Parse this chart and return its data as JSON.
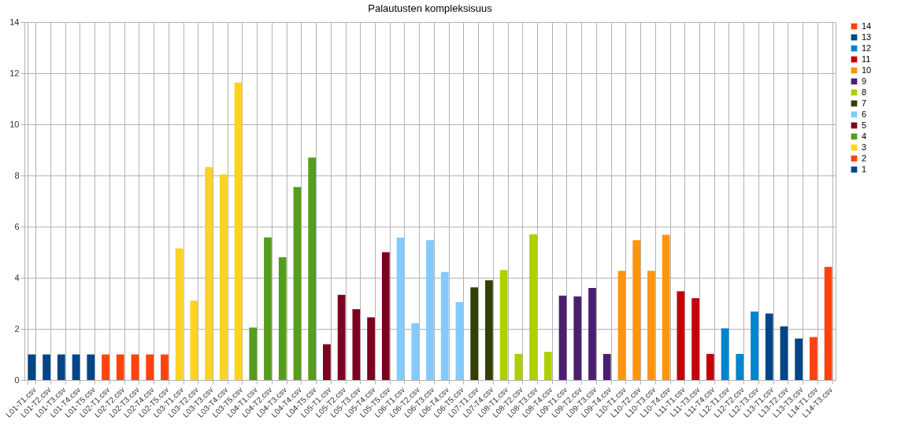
{
  "chart_data": {
    "type": "bar",
    "title": "Palautusten kompleksisuus",
    "categories": [
      "L01-T1.csv",
      "L01-T2.csv",
      "L01-T3.csv",
      "L01-T4.csv",
      "L01-T5.csv",
      "L02-T1.csv",
      "L02-T2.csv",
      "L02-T3.csv",
      "L02-T4.csv",
      "L02-T5.csv",
      "L03-T1.csv",
      "L03-T2.csv",
      "L03-T3.csv",
      "L03-T4.csv",
      "L03-T5.csv",
      "L04-T1.csv",
      "L04-T2.csv",
      "L04-T3.csv",
      "L04-T4.csv",
      "L04-T5.csv",
      "L05-T1.csv",
      "L05-T2.csv",
      "L05-T3.csv",
      "L05-T4.csv",
      "L05-T5.csv",
      "L06-T1.csv",
      "L06-T2.csv",
      "L06-T3.csv",
      "L06-T4.csv",
      "L06-T5.csv",
      "L07-T1.csv",
      "L07-T4.csv",
      "L08-T1.csv",
      "L08-T2.csv",
      "L08-T3.csv",
      "L08-T4.csv",
      "L09-T1.csv",
      "L09-T2.csv",
      "L09-T3.csv",
      "L09-T4.csv",
      "L10-T1.csv",
      "L10-T2.csv",
      "L10-T3.csv",
      "L10-T4.csv",
      "L11-T1.csv",
      "L11-T3.csv",
      "L11-T4.csv",
      "L12-T1.csv",
      "L12-T2.csv",
      "L12-T3.csv",
      "L13-T1.csv",
      "L13-T2.csv",
      "L13-T3.csv",
      "L14-T1.csv",
      "L14-T3.csv"
    ],
    "series": [
      {
        "name": "1",
        "color": "#004586",
        "values": [
          1,
          1,
          1,
          1,
          1,
          null,
          null,
          null,
          null,
          null,
          null,
          null,
          null,
          null,
          null,
          null,
          null,
          null,
          null,
          null,
          null,
          null,
          null,
          null,
          null,
          null,
          null,
          null,
          null,
          null,
          null,
          null,
          null,
          null,
          null,
          null,
          null,
          null,
          null,
          null,
          null,
          null,
          null,
          null,
          null,
          null,
          null,
          null,
          null,
          null,
          null,
          null,
          null,
          null,
          null
        ]
      },
      {
        "name": "2",
        "color": "#ff420e",
        "values": [
          null,
          null,
          null,
          null,
          null,
          1,
          1,
          1,
          1,
          1,
          null,
          null,
          null,
          null,
          null,
          null,
          null,
          null,
          null,
          null,
          null,
          null,
          null,
          null,
          null,
          null,
          null,
          null,
          null,
          null,
          null,
          null,
          null,
          null,
          null,
          null,
          null,
          null,
          null,
          null,
          null,
          null,
          null,
          null,
          null,
          null,
          null,
          null,
          null,
          null,
          null,
          null,
          null,
          null,
          null
        ]
      },
      {
        "name": "3",
        "color": "#ffd320",
        "values": [
          null,
          null,
          null,
          null,
          null,
          null,
          null,
          null,
          null,
          null,
          5.15,
          3.1,
          8.33,
          8.05,
          11.63,
          null,
          null,
          null,
          null,
          null,
          null,
          null,
          null,
          null,
          null,
          null,
          null,
          null,
          null,
          null,
          null,
          null,
          null,
          null,
          null,
          null,
          null,
          null,
          null,
          null,
          null,
          null,
          null,
          null,
          null,
          null,
          null,
          null,
          null,
          null,
          null,
          null,
          null,
          null,
          null
        ]
      },
      {
        "name": "4",
        "color": "#579d1c",
        "values": [
          null,
          null,
          null,
          null,
          null,
          null,
          null,
          null,
          null,
          null,
          null,
          null,
          null,
          null,
          null,
          2.05,
          5.58,
          4.8,
          7.55,
          8.7,
          null,
          null,
          null,
          null,
          null,
          null,
          null,
          null,
          null,
          null,
          null,
          null,
          null,
          null,
          null,
          null,
          null,
          null,
          null,
          null,
          null,
          null,
          null,
          null,
          null,
          null,
          null,
          null,
          null,
          null,
          null,
          null,
          null,
          null,
          null
        ]
      },
      {
        "name": "5",
        "color": "#7e0021",
        "values": [
          null,
          null,
          null,
          null,
          null,
          null,
          null,
          null,
          null,
          null,
          null,
          null,
          null,
          null,
          null,
          null,
          null,
          null,
          null,
          null,
          1.4,
          3.33,
          2.77,
          2.45,
          5.0,
          null,
          null,
          null,
          null,
          null,
          null,
          null,
          null,
          null,
          null,
          null,
          null,
          null,
          null,
          null,
          null,
          null,
          null,
          null,
          null,
          null,
          null,
          null,
          null,
          null,
          null,
          null,
          null,
          null,
          null
        ]
      },
      {
        "name": "6",
        "color": "#83caff",
        "values": [
          null,
          null,
          null,
          null,
          null,
          null,
          null,
          null,
          null,
          null,
          null,
          null,
          null,
          null,
          null,
          null,
          null,
          null,
          null,
          null,
          null,
          null,
          null,
          null,
          null,
          5.57,
          2.22,
          5.47,
          4.22,
          3.05,
          null,
          null,
          null,
          null,
          null,
          null,
          null,
          null,
          null,
          null,
          null,
          null,
          null,
          null,
          null,
          null,
          null,
          null,
          null,
          null,
          null,
          null,
          null,
          null,
          null
        ]
      },
      {
        "name": "7",
        "color": "#314004",
        "values": [
          null,
          null,
          null,
          null,
          null,
          null,
          null,
          null,
          null,
          null,
          null,
          null,
          null,
          null,
          null,
          null,
          null,
          null,
          null,
          null,
          null,
          null,
          null,
          null,
          null,
          null,
          null,
          null,
          null,
          null,
          3.62,
          3.9,
          null,
          null,
          null,
          null,
          null,
          null,
          null,
          null,
          null,
          null,
          null,
          null,
          null,
          null,
          null,
          null,
          null,
          null,
          null,
          null,
          null,
          null,
          null
        ]
      },
      {
        "name": "8",
        "color": "#aecf00",
        "values": [
          null,
          null,
          null,
          null,
          null,
          null,
          null,
          null,
          null,
          null,
          null,
          null,
          null,
          null,
          null,
          null,
          null,
          null,
          null,
          null,
          null,
          null,
          null,
          null,
          null,
          null,
          null,
          null,
          null,
          null,
          null,
          null,
          4.3,
          1.02,
          5.7,
          1.1,
          null,
          null,
          null,
          null,
          null,
          null,
          null,
          null,
          null,
          null,
          null,
          null,
          null,
          null,
          null,
          null,
          null,
          null,
          null
        ]
      },
      {
        "name": "9",
        "color": "#4b1f6f",
        "values": [
          null,
          null,
          null,
          null,
          null,
          null,
          null,
          null,
          null,
          null,
          null,
          null,
          null,
          null,
          null,
          null,
          null,
          null,
          null,
          null,
          null,
          null,
          null,
          null,
          null,
          null,
          null,
          null,
          null,
          null,
          null,
          null,
          null,
          null,
          null,
          null,
          3.3,
          3.27,
          3.6,
          1.02,
          null,
          null,
          null,
          null,
          null,
          null,
          null,
          null,
          null,
          null,
          null,
          null,
          null,
          null,
          null
        ]
      },
      {
        "name": "10",
        "color": "#ff950e",
        "values": [
          null,
          null,
          null,
          null,
          null,
          null,
          null,
          null,
          null,
          null,
          null,
          null,
          null,
          null,
          null,
          null,
          null,
          null,
          null,
          null,
          null,
          null,
          null,
          null,
          null,
          null,
          null,
          null,
          null,
          null,
          null,
          null,
          null,
          null,
          null,
          null,
          null,
          null,
          null,
          null,
          4.27,
          5.47,
          4.27,
          5.68,
          null,
          null,
          null,
          null,
          null,
          null,
          null,
          null,
          null,
          null,
          null
        ]
      },
      {
        "name": "11",
        "color": "#c5000b",
        "values": [
          null,
          null,
          null,
          null,
          null,
          null,
          null,
          null,
          null,
          null,
          null,
          null,
          null,
          null,
          null,
          null,
          null,
          null,
          null,
          null,
          null,
          null,
          null,
          null,
          null,
          null,
          null,
          null,
          null,
          null,
          null,
          null,
          null,
          null,
          null,
          null,
          null,
          null,
          null,
          null,
          null,
          null,
          null,
          null,
          3.47,
          3.2,
          1.02,
          null,
          null,
          null,
          null,
          null,
          null,
          null,
          null
        ]
      },
      {
        "name": "12",
        "color": "#0084d1",
        "values": [
          null,
          null,
          null,
          null,
          null,
          null,
          null,
          null,
          null,
          null,
          null,
          null,
          null,
          null,
          null,
          null,
          null,
          null,
          null,
          null,
          null,
          null,
          null,
          null,
          null,
          null,
          null,
          null,
          null,
          null,
          null,
          null,
          null,
          null,
          null,
          null,
          null,
          null,
          null,
          null,
          null,
          null,
          null,
          null,
          null,
          null,
          null,
          2.02,
          1.02,
          2.68,
          null,
          null,
          null,
          null,
          null
        ]
      },
      {
        "name": "13",
        "color": "#004586",
        "values": [
          null,
          null,
          null,
          null,
          null,
          null,
          null,
          null,
          null,
          null,
          null,
          null,
          null,
          null,
          null,
          null,
          null,
          null,
          null,
          null,
          null,
          null,
          null,
          null,
          null,
          null,
          null,
          null,
          null,
          null,
          null,
          null,
          null,
          null,
          null,
          null,
          null,
          null,
          null,
          null,
          null,
          null,
          null,
          null,
          null,
          null,
          null,
          null,
          null,
          null,
          2.6,
          2.1,
          1.62,
          null,
          null
        ]
      },
      {
        "name": "14",
        "color": "#ff420e",
        "values": [
          null,
          null,
          null,
          null,
          null,
          null,
          null,
          null,
          null,
          null,
          null,
          null,
          null,
          null,
          null,
          null,
          null,
          null,
          null,
          null,
          null,
          null,
          null,
          null,
          null,
          null,
          null,
          null,
          null,
          null,
          null,
          null,
          null,
          null,
          null,
          null,
          null,
          null,
          null,
          null,
          null,
          null,
          null,
          null,
          null,
          null,
          null,
          null,
          null,
          null,
          null,
          null,
          null,
          1.68,
          4.42
        ]
      }
    ],
    "ylim": [
      0,
      14
    ],
    "yticks": [
      0,
      2,
      4,
      6,
      8,
      10,
      12,
      14
    ],
    "grid": true,
    "legend": "right"
  }
}
